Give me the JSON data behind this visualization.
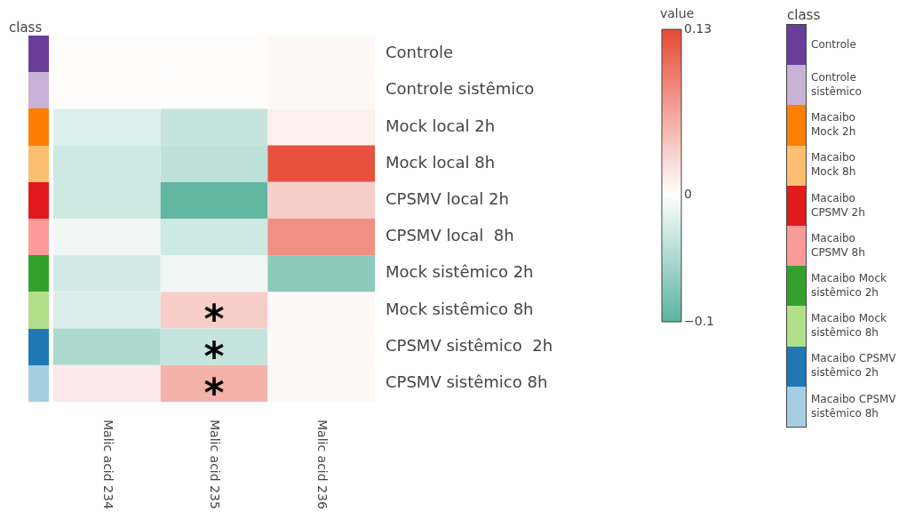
{
  "chart_data": [
    {
      "type": "heatmap",
      "clabel": "value",
      "categories": [
        "Malic acid 234",
        "Malic acid 235",
        "Malic acid 236"
      ],
      "y_categories": [
        "Controle",
        "Controle sistêmico",
        "Mock local 2h",
        "Mock local 8h",
        "CPSMV local 2h",
        "CPSMV local  8h",
        "Mock sistêmico 2h",
        "Mock sistêmico 8h",
        "CPSMV sistêmico  2h",
        "CPSMV sistêmico 8h"
      ],
      "cells": [
        [
          0.002,
          0.002,
          0.005
        ],
        [
          0.002,
          0.002,
          0.005
        ],
        [
          -0.02,
          -0.035,
          0.01
        ],
        [
          -0.03,
          -0.04,
          0.125
        ],
        [
          -0.03,
          -0.095,
          0.035
        ],
        [
          -0.01,
          -0.03,
          0.08
        ],
        [
          -0.027,
          -0.01,
          -0.07
        ],
        [
          -0.022,
          0.035,
          0.005
        ],
        [
          -0.05,
          -0.035,
          0.005
        ],
        [
          0.015,
          0.055,
          0.005
        ]
      ],
      "cell_labels": [
        [
          null,
          null,
          null
        ],
        [
          null,
          null,
          null
        ],
        [
          null,
          null,
          null
        ],
        [
          null,
          null,
          null
        ],
        [
          null,
          null,
          null
        ],
        [
          null,
          null,
          null
        ],
        [
          null,
          null,
          null
        ],
        [
          null,
          "*",
          null
        ],
        [
          null,
          "*",
          null
        ],
        [
          null,
          "*",
          null
        ]
      ],
      "clim": [
        -0.1,
        0.13
      ],
      "cticks": [
        {
          "value": -0.1,
          "label": "−0.1"
        },
        0,
        0.13
      ]
    },
    {
      "type": "other",
      "title": "class",
      "legend_title": "class",
      "categories": [
        "Controle",
        "Controle sistêmico",
        "Macaibo Mock 2h",
        "Macaibo Mock 8h",
        "Macaibo CPSMV 2h",
        "Macaibo CPSMV 8h",
        "Macaibo Mock sistêmico 2h",
        "Macaibo Mock sistêmico 8h",
        "Macaibo CPSMV sistêmico 2h",
        "Macaibo CPSMV sistêmico 8h"
      ],
      "colors": [
        "#6a3d9a",
        "#cab2d6",
        "#ff7f00",
        "#fdbf6f",
        "#e31a1c",
        "#fb9a99",
        "#33a02c",
        "#b2df8a",
        "#1f78b4",
        "#a6cee3"
      ]
    }
  ]
}
